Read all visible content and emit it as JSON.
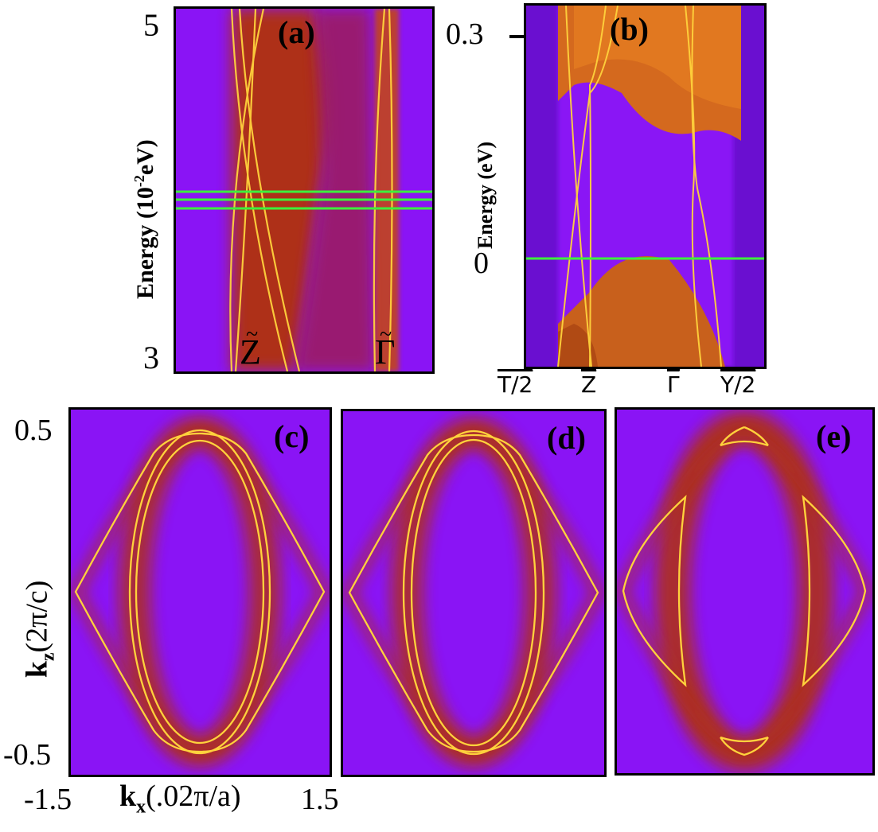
{
  "panels": {
    "a": {
      "label": "(a)",
      "ylabel": "Energy (10",
      "ylabel_sup": "-2",
      "ylabel_tail": "eV)",
      "yticks": [
        "5",
        "3"
      ],
      "points": [
        "Z",
        "Γ"
      ]
    },
    "b": {
      "label": "(b)",
      "ylabel": "Energy (eV)",
      "yticks": [
        "0.3",
        "0"
      ],
      "xticks": [
        "T/2",
        "Z",
        "Γ",
        "Y/2"
      ]
    },
    "c": {
      "label": "(c)"
    },
    "d": {
      "label": "(d)"
    },
    "e": {
      "label": "(e)"
    }
  },
  "axes_bottom": {
    "ylabel": "k",
    "ylabel_sub": "z",
    "ylabel_tail": "(2π/c)",
    "yticks": [
      "0.5",
      "-0.5"
    ],
    "xlabel": "k",
    "xlabel_sub": "x",
    "xlabel_tail": "(.02π/a)",
    "xticks": [
      "-1.5",
      "1.5"
    ]
  },
  "colors": {
    "background": "#8a14f5",
    "bulk": "#b23a10",
    "band_line": "#ffd23c",
    "fermi_line": "#3cf03c"
  }
}
